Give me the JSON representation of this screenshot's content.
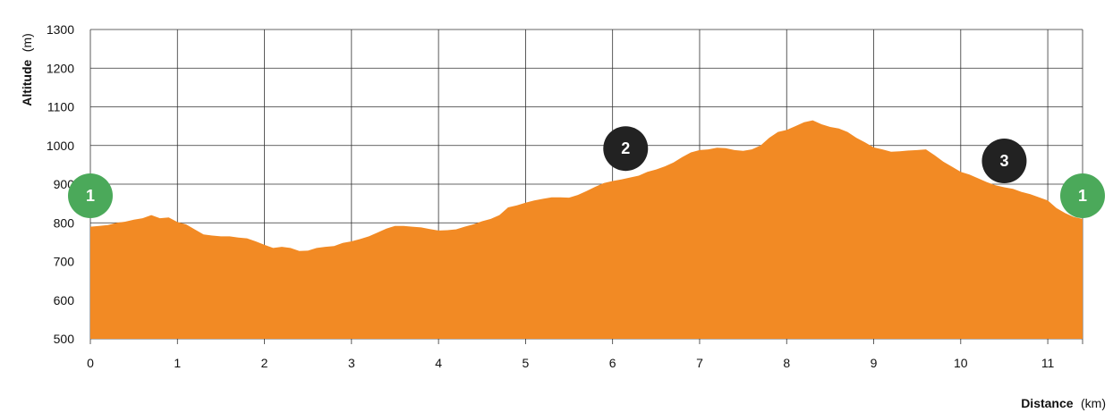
{
  "chart_data": {
    "type": "area",
    "title": "",
    "xlabel": {
      "name": "Distance",
      "unit": "(km)"
    },
    "ylabel": {
      "name": "Altitude",
      "unit": "(m)"
    },
    "xlim": [
      0,
      11.4
    ],
    "ylim": [
      500,
      1300
    ],
    "x_ticks": [
      "0",
      "1",
      "2",
      "3",
      "4",
      "5",
      "6",
      "7",
      "8",
      "9",
      "10",
      "11"
    ],
    "y_ticks": [
      "500",
      "600",
      "700",
      "800",
      "900",
      "1000",
      "1100",
      "1200",
      "1300"
    ],
    "grid": true,
    "fill_color": "#F28A24",
    "series": [
      {
        "x": [
          0,
          0.1,
          0.2,
          0.3,
          0.4,
          0.5,
          0.6,
          0.7,
          0.8,
          0.9,
          1.0,
          1.1,
          1.2,
          1.3,
          1.4,
          1.5,
          1.6,
          1.7,
          1.8,
          1.9,
          2.0,
          2.1,
          2.2,
          2.3,
          2.4,
          2.5,
          2.6,
          2.7,
          2.8,
          2.9,
          3.0,
          3.1,
          3.2,
          3.3,
          3.4,
          3.5,
          3.6,
          3.7,
          3.8,
          3.9,
          4.0,
          4.1,
          4.2,
          4.3,
          4.4,
          4.5,
          4.6,
          4.7,
          4.8,
          4.9,
          5.0,
          5.1,
          5.2,
          5.3,
          5.4,
          5.5,
          5.6,
          5.7,
          5.8,
          5.9,
          6.0,
          6.1,
          6.2,
          6.3,
          6.4,
          6.5,
          6.6,
          6.7,
          6.8,
          6.9,
          7.0,
          7.1,
          7.2,
          7.3,
          7.4,
          7.5,
          7.6,
          7.7,
          7.8,
          7.9,
          8.0,
          8.1,
          8.2,
          8.3,
          8.4,
          8.5,
          8.6,
          8.7,
          8.8,
          8.9,
          9.0,
          9.1,
          9.2,
          9.3,
          9.4,
          9.5,
          9.6,
          9.7,
          9.8,
          9.9,
          10.0,
          10.1,
          10.2,
          10.3,
          10.4,
          10.5,
          10.6,
          10.7,
          10.8,
          10.9,
          11.0,
          11.1,
          11.2,
          11.3,
          11.4
        ],
        "y": [
          790,
          792,
          794,
          800,
          803,
          808,
          812,
          820,
          812,
          814,
          802,
          796,
          783,
          770,
          767,
          765,
          765,
          762,
          760,
          752,
          743,
          735,
          738,
          735,
          727,
          728,
          735,
          738,
          740,
          748,
          752,
          758,
          765,
          775,
          785,
          792,
          792,
          790,
          788,
          784,
          780,
          781,
          783,
          790,
          796,
          804,
          810,
          820,
          840,
          845,
          852,
          858,
          862,
          866,
          866,
          865,
          872,
          882,
          893,
          903,
          908,
          912,
          917,
          922,
          932,
          938,
          946,
          956,
          970,
          982,
          988,
          990,
          994,
          993,
          988,
          986,
          990,
          1000,
          1020,
          1035,
          1040,
          1050,
          1060,
          1065,
          1055,
          1048,
          1044,
          1035,
          1020,
          1008,
          995,
          990,
          984,
          985,
          987,
          988,
          990,
          975,
          958,
          945,
          932,
          925,
          915,
          905,
          897,
          892,
          888,
          880,
          874,
          866,
          858,
          838,
          825,
          815,
          810
        ]
      }
    ],
    "markers": [
      {
        "label": "1",
        "x": 0.0,
        "y": 870,
        "color": "#4BA95A"
      },
      {
        "label": "2",
        "x": 6.15,
        "y": 992,
        "color": "#222222"
      },
      {
        "label": "3",
        "x": 10.5,
        "y": 960,
        "color": "#222222"
      },
      {
        "label": "1",
        "x": 11.4,
        "y": 870,
        "color": "#4BA95A"
      }
    ]
  }
}
